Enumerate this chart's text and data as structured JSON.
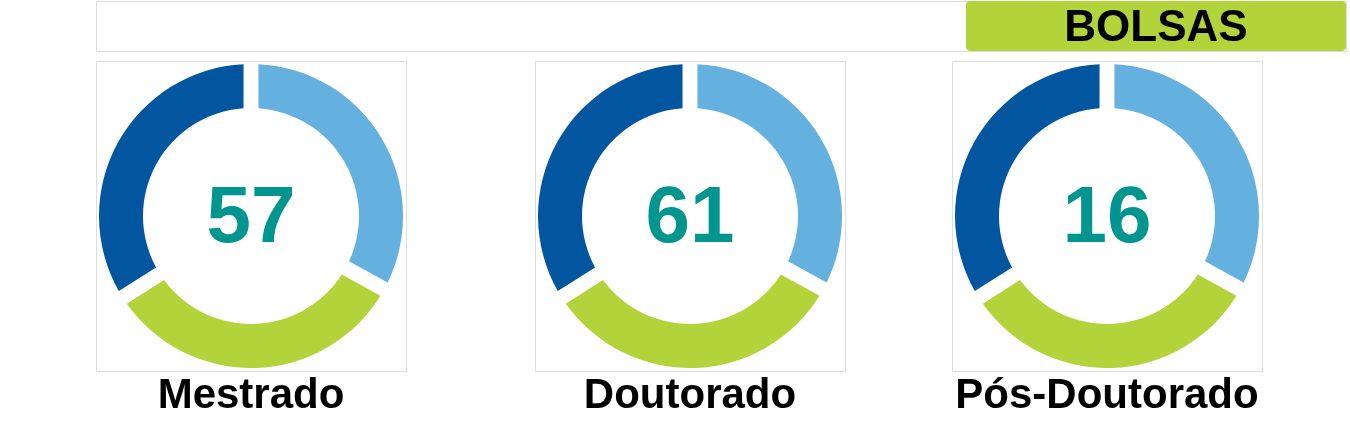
{
  "chart_data": [
    {
      "type": "other",
      "title": "BOLSAS",
      "color": "#b2d33a"
    },
    {
      "type": "donut",
      "title": "Mestrado",
      "categories": [
        null,
        null,
        null
      ],
      "values": [
        33,
        33,
        34
      ],
      "colors": [
        "#64b0df",
        "#b2d33a",
        "#02569f"
      ],
      "annotations": [
        "57"
      ]
    },
    {
      "type": "donut",
      "title": "Doutorado",
      "categories": [
        null,
        null,
        null
      ],
      "values": [
        33,
        33,
        34
      ],
      "colors": [
        "#64b0df",
        "#b2d33a",
        "#02569f"
      ],
      "annotations": [
        "61"
      ]
    },
    {
      "type": "donut",
      "title": "Pós-Doutorado",
      "categories": [
        null,
        null,
        null
      ],
      "values": [
        33,
        33,
        34
      ],
      "colors": [
        "#64b0df",
        "#b2d33a",
        "#02569f"
      ],
      "annotations": [
        "16"
      ]
    }
  ]
}
